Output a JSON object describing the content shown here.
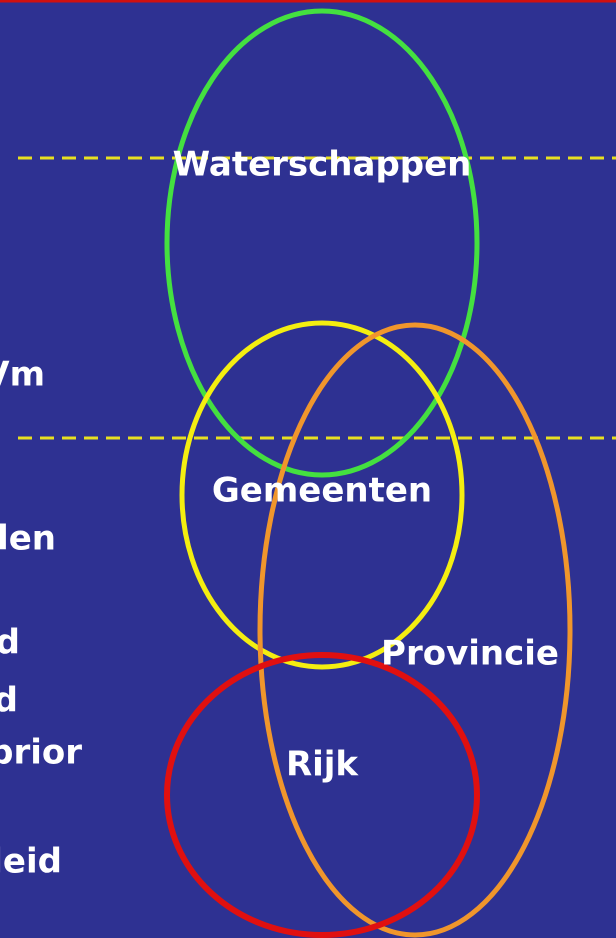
{
  "circles": [
    {
      "label": "Waterschappen"
    },
    {
      "label": "Gemeenten"
    },
    {
      "label": "Provincie"
    },
    {
      "label": "Rijk"
    }
  ],
  "side_labels": [
    "Vm",
    "den",
    "d",
    "d",
    "prior",
    "leid"
  ]
}
